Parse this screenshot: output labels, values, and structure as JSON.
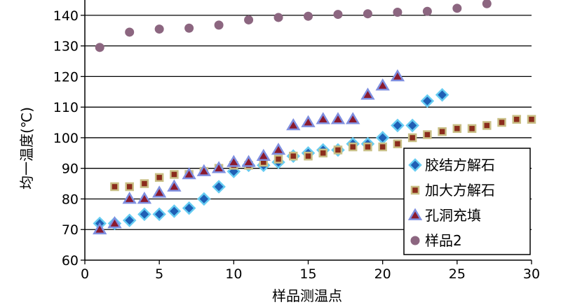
{
  "chart_data": {
    "type": "scatter",
    "title": "",
    "xlabel": "样品测温点",
    "ylabel": "均一温度(℃)",
    "xlim": [
      0,
      30
    ],
    "ylim": [
      60,
      145
    ],
    "xticks": [
      "0",
      "5",
      "10",
      "15",
      "20",
      "25",
      "30"
    ],
    "yticks": [
      "60",
      "70",
      "80",
      "90",
      "100",
      "110",
      "120",
      "130",
      "140"
    ],
    "grid": "horizontal",
    "legend_position": "bottom-right",
    "colors": {
      "diamond_fill": "#1f5fb5",
      "diamond_edge": "#66ccf2",
      "square_fill": "#8b2c1c",
      "square_edge": "#c9bf86",
      "triangle_fill": "#8b1a2e",
      "triangle_edge": "#7f8fe0",
      "circle_fill": "#8c6680",
      "grid": "#000000"
    },
    "series": [
      {
        "name": "胶结方解石",
        "marker": "diamond",
        "x": [
          1,
          2,
          3,
          4,
          5,
          6,
          7,
          8,
          9,
          10,
          11,
          12,
          13,
          14,
          15,
          16,
          17,
          18,
          19,
          20,
          21,
          22,
          23,
          24
        ],
        "y": [
          72,
          72,
          73,
          75,
          75,
          76,
          77,
          80,
          84,
          89,
          91,
          91,
          92,
          94,
          95,
          96,
          96,
          98,
          98,
          100,
          104,
          104,
          112,
          114
        ]
      },
      {
        "name": "加大方解石",
        "marker": "square",
        "x": [
          2,
          3,
          4,
          5,
          6,
          7,
          8,
          9,
          10,
          11,
          12,
          13,
          14,
          15,
          16,
          17,
          18,
          19,
          20,
          21,
          22,
          23,
          24,
          25,
          26,
          27,
          28,
          29,
          30
        ],
        "y": [
          84,
          84,
          85,
          87,
          88,
          88,
          89,
          90,
          91,
          91,
          92,
          93,
          94,
          94,
          95,
          96,
          97,
          97,
          97,
          98,
          100,
          101,
          102,
          103,
          103,
          104,
          105,
          106,
          106
        ]
      },
      {
        "name": "孔洞充填",
        "marker": "triangle",
        "x": [
          1,
          2,
          3,
          4,
          5,
          6,
          7,
          8,
          9,
          10,
          11,
          12,
          13,
          14,
          15,
          16,
          17,
          18,
          19,
          20,
          21
        ],
        "y": [
          70,
          72,
          80,
          80,
          82,
          84,
          88,
          89,
          90,
          92,
          92,
          94,
          96,
          104,
          105,
          106,
          106,
          106,
          114,
          117,
          120
        ]
      },
      {
        "name": "样品2",
        "marker": "circle",
        "x": [
          1,
          3,
          5,
          7,
          9,
          11,
          13,
          15,
          17,
          19,
          21,
          23,
          25,
          27
        ],
        "y": [
          129.5,
          134.5,
          135.5,
          135.8,
          136.8,
          138.5,
          139.3,
          139.7,
          140.3,
          140.5,
          141,
          141.3,
          142.3,
          143.8
        ]
      }
    ]
  }
}
